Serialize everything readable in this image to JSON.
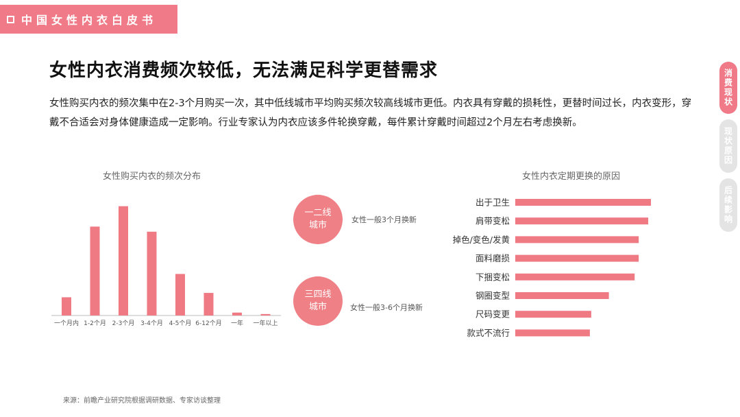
{
  "header": {
    "label": "中国女性内衣白皮书"
  },
  "title": "女性内衣消费频次较低，无法满足科学更替需求",
  "intro": "女性购买内衣的频次集中在2-3个月购买一次，其中低线城市平均购买频次较高线城市更低。内衣具有穿戴的损耗性，更替时间过长，内衣变形，穿戴不合适会对身体健康造成一定影响。行业专家认为内衣应该多件轮换穿戴，每件累计穿戴时间超过2个月左右考虑换新。",
  "colors": {
    "accent": "#f07a87",
    "bar": "#ef7a84",
    "circle": "#ee8086"
  },
  "chart_data": [
    {
      "type": "bar",
      "title": "女性购买内衣的频次分布",
      "categories": [
        "一个月内",
        "1-2个月",
        "2-3个月",
        "3-4个月",
        "4-5个月",
        "6-12个月",
        "一年",
        "一年以上"
      ],
      "values": [
        25,
        122,
        150,
        115,
        57,
        31,
        4,
        2
      ],
      "ylim": [
        0,
        160
      ],
      "grid": false
    },
    {
      "type": "bar",
      "orientation": "horizontal",
      "title": "女性内衣定期更换的原因",
      "categories": [
        "出于卫生",
        "肩带变松",
        "掉色/变色/发黄",
        "面料磨损",
        "下捆变松",
        "钢圈变型",
        "尺码变更",
        "款式不流行"
      ],
      "values": [
        100,
        98,
        91,
        91,
        88,
        69,
        56,
        55
      ],
      "xlim": [
        0,
        100
      ],
      "grid": false
    }
  ],
  "cities": [
    {
      "label": "一二线\n城市",
      "note": "女性一般3个月换新"
    },
    {
      "label": "三四线\n城市",
      "note": "女性一般3-6个月换新"
    }
  ],
  "side_nav": [
    {
      "label": "消费现状",
      "active": true
    },
    {
      "label": "现状原因",
      "active": false
    },
    {
      "label": "后续影响",
      "active": false
    }
  ],
  "source": "来源：前瞻产业研究院根据调研数据、专家访谈整理"
}
